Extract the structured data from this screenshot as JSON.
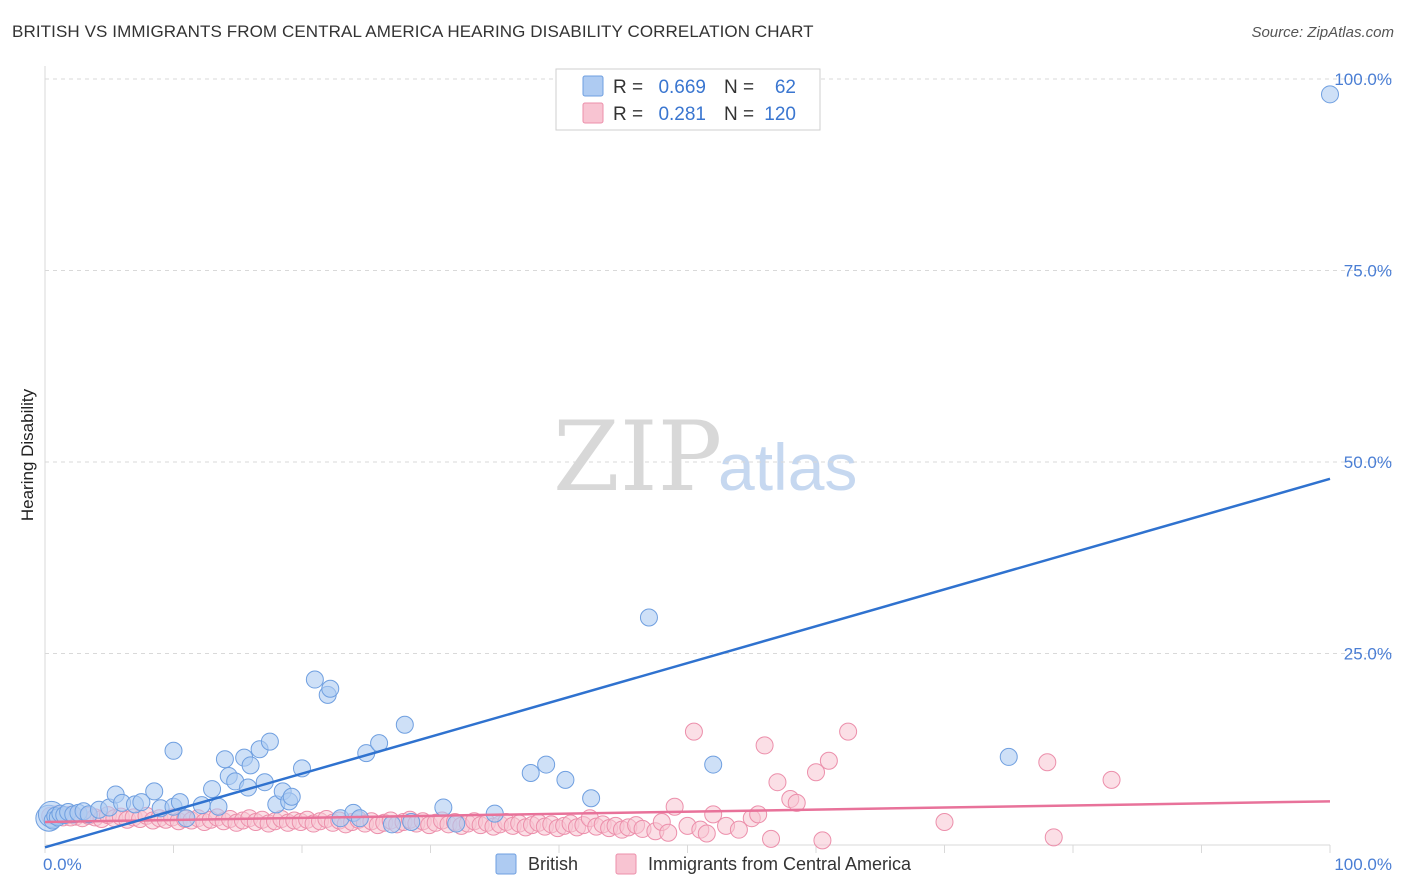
{
  "header": {
    "title": "BRITISH VS IMMIGRANTS FROM CENTRAL AMERICA HEARING DISABILITY CORRELATION CHART",
    "source": "Source: ZipAtlas.com"
  },
  "watermark": {
    "zip": "ZIP",
    "atlas": "atlas"
  },
  "legend": {
    "british": {
      "r_label": "R =",
      "r_value": "0.669",
      "n_label": "N =",
      "n_value": "62"
    },
    "immigrants": {
      "r_label": "R =",
      "r_value": "0.281",
      "n_label": "N =",
      "n_value": "120"
    }
  },
  "colors": {
    "british_fill": "#aecbf2",
    "british_stroke": "#6f9fe0",
    "british_line": "#2f72cf",
    "immig_fill": "#f8c4d2",
    "immig_stroke": "#ec8fab",
    "immig_line": "#e8729a",
    "grid": "#d9d9d9",
    "tick": "#4a7ed4"
  },
  "chart_data": {
    "type": "scatter",
    "title": "BRITISH VS IMMIGRANTS FROM CENTRAL AMERICA HEARING DISABILITY CORRELATION CHART",
    "xlabel": "",
    "ylabel": "Hearing Disability",
    "xlim": [
      0,
      100
    ],
    "ylim": [
      0,
      100
    ],
    "x_tick_labels": [
      "0.0%",
      "100.0%"
    ],
    "y_ticks": [
      25,
      50,
      75,
      100
    ],
    "y_tick_labels": [
      "25.0%",
      "50.0%",
      "75.0%",
      "100.0%"
    ],
    "grid": true,
    "legend_position": "bottom",
    "series": [
      {
        "name": "British",
        "r": 0.669,
        "n": 62,
        "trend": {
          "x": [
            0,
            100
          ],
          "y": [
            -0.3,
            47.8
          ]
        },
        "points": [
          [
            0.3,
            3.5
          ],
          [
            0.5,
            4.0
          ],
          [
            0.6,
            3.2
          ],
          [
            0.8,
            3.8
          ],
          [
            1.0,
            3.6
          ],
          [
            1.2,
            4.1
          ],
          [
            1.5,
            3.9
          ],
          [
            1.8,
            4.3
          ],
          [
            2.2,
            4.0
          ],
          [
            2.6,
            4.2
          ],
          [
            3.0,
            4.4
          ],
          [
            3.4,
            4.0
          ],
          [
            4.2,
            4.6
          ],
          [
            5.0,
            4.9
          ],
          [
            5.5,
            6.6
          ],
          [
            6.0,
            5.5
          ],
          [
            7.0,
            5.3
          ],
          [
            7.5,
            5.6
          ],
          [
            8.5,
            7.0
          ],
          [
            9.0,
            4.8
          ],
          [
            10.0,
            5.0
          ],
          [
            10.5,
            5.6
          ],
          [
            11.0,
            3.5
          ],
          [
            12.2,
            5.2
          ],
          [
            13.0,
            7.3
          ],
          [
            13.5,
            5.0
          ],
          [
            10.0,
            12.3
          ],
          [
            14.0,
            11.2
          ],
          [
            14.3,
            9.0
          ],
          [
            14.8,
            8.3
          ],
          [
            15.5,
            11.4
          ],
          [
            15.8,
            7.5
          ],
          [
            16.0,
            10.4
          ],
          [
            16.7,
            12.5
          ],
          [
            17.1,
            8.2
          ],
          [
            17.5,
            13.5
          ],
          [
            18.0,
            5.3
          ],
          [
            18.5,
            7.0
          ],
          [
            19.0,
            5.7
          ],
          [
            19.2,
            6.3
          ],
          [
            20.0,
            10.0
          ],
          [
            21.0,
            21.6
          ],
          [
            22.0,
            19.6
          ],
          [
            22.2,
            20.4
          ],
          [
            23.0,
            3.5
          ],
          [
            24.0,
            4.2
          ],
          [
            24.5,
            3.5
          ],
          [
            25.0,
            12.0
          ],
          [
            26.0,
            13.3
          ],
          [
            27.0,
            2.7
          ],
          [
            28.0,
            15.7
          ],
          [
            28.5,
            3.0
          ],
          [
            31.0,
            4.9
          ],
          [
            32.0,
            2.8
          ],
          [
            35.0,
            4.1
          ],
          [
            37.8,
            9.4
          ],
          [
            39.0,
            10.5
          ],
          [
            40.5,
            8.5
          ],
          [
            42.5,
            6.1
          ],
          [
            47.0,
            29.7
          ],
          [
            52.0,
            10.5
          ],
          [
            75.0,
            11.5
          ],
          [
            100.0,
            98.0
          ]
        ]
      },
      {
        "name": "Immigrants from Central America",
        "r": 0.281,
        "n": 120,
        "trend": {
          "x": [
            0,
            100
          ],
          "y": [
            3.0,
            5.7
          ]
        },
        "points": [
          [
            0.4,
            3.8
          ],
          [
            0.9,
            4.0
          ],
          [
            1.4,
            3.6
          ],
          [
            1.9,
            3.9
          ],
          [
            2.4,
            3.7
          ],
          [
            2.9,
            3.5
          ],
          [
            3.4,
            3.8
          ],
          [
            3.9,
            3.6
          ],
          [
            4.4,
            3.4
          ],
          [
            4.9,
            3.9
          ],
          [
            5.4,
            3.5
          ],
          [
            5.9,
            3.7
          ],
          [
            6.4,
            3.3
          ],
          [
            6.9,
            3.6
          ],
          [
            7.4,
            3.4
          ],
          [
            7.9,
            3.8
          ],
          [
            8.4,
            3.2
          ],
          [
            8.9,
            3.5
          ],
          [
            9.4,
            3.3
          ],
          [
            9.9,
            3.6
          ],
          [
            10.4,
            3.1
          ],
          [
            10.9,
            3.4
          ],
          [
            11.4,
            3.2
          ],
          [
            11.9,
            3.5
          ],
          [
            12.4,
            3.0
          ],
          [
            12.9,
            3.3
          ],
          [
            13.4,
            3.6
          ],
          [
            13.9,
            3.1
          ],
          [
            14.4,
            3.4
          ],
          [
            14.9,
            2.9
          ],
          [
            15.4,
            3.2
          ],
          [
            15.9,
            3.5
          ],
          [
            16.4,
            3.0
          ],
          [
            16.9,
            3.3
          ],
          [
            17.4,
            2.8
          ],
          [
            17.9,
            3.1
          ],
          [
            18.4,
            3.4
          ],
          [
            18.9,
            2.9
          ],
          [
            19.4,
            3.2
          ],
          [
            19.9,
            3.0
          ],
          [
            20.4,
            3.3
          ],
          [
            20.9,
            2.8
          ],
          [
            21.4,
            3.1
          ],
          [
            21.9,
            3.4
          ],
          [
            22.4,
            2.9
          ],
          [
            22.9,
            3.2
          ],
          [
            23.4,
            2.7
          ],
          [
            23.9,
            3.0
          ],
          [
            24.4,
            3.3
          ],
          [
            24.9,
            2.8
          ],
          [
            25.4,
            3.1
          ],
          [
            25.9,
            2.6
          ],
          [
            26.4,
            2.9
          ],
          [
            26.9,
            3.2
          ],
          [
            27.4,
            2.7
          ],
          [
            27.9,
            3.0
          ],
          [
            28.4,
            3.3
          ],
          [
            28.9,
            2.8
          ],
          [
            29.4,
            3.1
          ],
          [
            29.9,
            2.6
          ],
          [
            30.4,
            2.9
          ],
          [
            30.9,
            3.2
          ],
          [
            31.4,
            2.7
          ],
          [
            31.9,
            3.0
          ],
          [
            32.4,
            2.5
          ],
          [
            32.9,
            2.8
          ],
          [
            33.4,
            3.1
          ],
          [
            33.9,
            2.6
          ],
          [
            34.4,
            2.9
          ],
          [
            34.9,
            2.4
          ],
          [
            35.4,
            2.7
          ],
          [
            35.9,
            3.0
          ],
          [
            36.4,
            2.5
          ],
          [
            36.9,
            2.8
          ],
          [
            37.4,
            2.3
          ],
          [
            37.9,
            2.6
          ],
          [
            38.4,
            2.9
          ],
          [
            38.9,
            2.4
          ],
          [
            39.4,
            2.7
          ],
          [
            39.9,
            2.2
          ],
          [
            40.4,
            2.5
          ],
          [
            40.9,
            2.8
          ],
          [
            41.4,
            2.3
          ],
          [
            41.9,
            2.6
          ],
          [
            42.4,
            3.5
          ],
          [
            42.9,
            2.4
          ],
          [
            43.4,
            2.7
          ],
          [
            43.9,
            2.2
          ],
          [
            44.4,
            2.5
          ],
          [
            44.9,
            2.0
          ],
          [
            45.4,
            2.3
          ],
          [
            46.0,
            2.6
          ],
          [
            46.5,
            2.1
          ],
          [
            47.5,
            1.8
          ],
          [
            48.0,
            3.0
          ],
          [
            48.5,
            1.6
          ],
          [
            49.0,
            5.0
          ],
          [
            50.0,
            2.5
          ],
          [
            50.5,
            14.8
          ],
          [
            51.0,
            2.0
          ],
          [
            51.5,
            1.5
          ],
          [
            52.0,
            4.0
          ],
          [
            53.0,
            2.5
          ],
          [
            54.0,
            2.0
          ],
          [
            55.0,
            3.5
          ],
          [
            55.5,
            4.0
          ],
          [
            56.0,
            13.0
          ],
          [
            56.5,
            0.8
          ],
          [
            57.0,
            8.2
          ],
          [
            58.0,
            6.0
          ],
          [
            58.5,
            5.5
          ],
          [
            60.0,
            9.5
          ],
          [
            60.5,
            0.6
          ],
          [
            61.0,
            11.0
          ],
          [
            62.5,
            14.8
          ],
          [
            70.0,
            3.0
          ],
          [
            78.0,
            10.8
          ],
          [
            78.5,
            1.0
          ],
          [
            83.0,
            8.5
          ],
          [
            2.0,
            3.6
          ]
        ]
      }
    ]
  },
  "bottom_legend": {
    "british": "British",
    "immigrants": "Immigrants from Central America"
  }
}
